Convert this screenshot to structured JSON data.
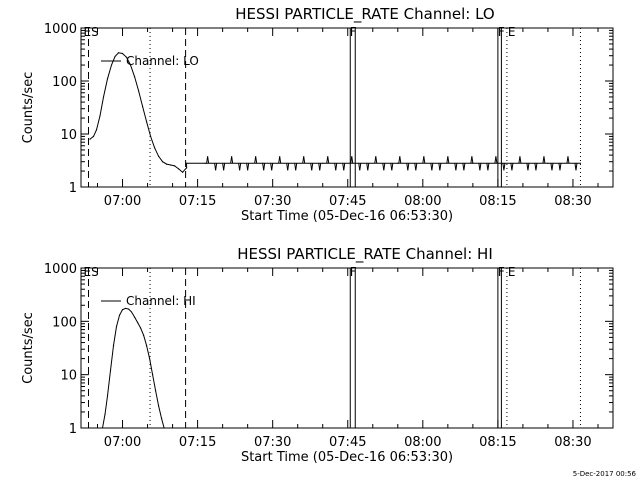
{
  "footer_timestamp": "5-Dec-2017 00:56",
  "chart_data": [
    {
      "type": "line",
      "title": "HESSI PARTICLE_RATE Channel: LO",
      "xlabel": "Start Time (05-Dec-16 06:53:30)",
      "ylabel": "Counts/sec",
      "yscale": "log",
      "ylim": [
        1,
        1000
      ],
      "xlim_minutes": [
        -8.3,
        98.0
      ],
      "x_ticks": [
        {
          "t": 0,
          "label": "07:00"
        },
        {
          "t": 15,
          "label": "07:15"
        },
        {
          "t": 30,
          "label": "07:30"
        },
        {
          "t": 45,
          "label": "07:45"
        },
        {
          "t": 60,
          "label": "08:00"
        },
        {
          "t": 75,
          "label": "08:15"
        },
        {
          "t": 90,
          "label": "08:30"
        }
      ],
      "y_ticks": [
        {
          "v": 1,
          "label": "1"
        },
        {
          "v": 10,
          "label": "10"
        },
        {
          "v": 100,
          "label": "100"
        },
        {
          "v": 1000,
          "label": "1000"
        }
      ],
      "legend": "Channel: LO",
      "series": [
        {
          "name": "Channel: LO",
          "x": [
            -6.5,
            -5.8,
            -5.2,
            -4.5,
            -3.8,
            -3.0,
            -2.2,
            -1.5,
            -0.8,
            0.0,
            0.8,
            1.6,
            2.4,
            3.2,
            4.0,
            4.8,
            5.6,
            6.4,
            7.2,
            8.0,
            8.8,
            9.6,
            10.4,
            11.2,
            12.0,
            12.8,
            12.8,
            16.5,
            28.0,
            40.0,
            55.0,
            70.0,
            85.0,
            91.5
          ],
          "y": [
            8,
            9,
            12,
            22,
            50,
            110,
            200,
            290,
            340,
            330,
            280,
            200,
            120,
            65,
            33,
            17,
            9,
            5.5,
            3.8,
            3.0,
            2.7,
            2.6,
            2.5,
            2.2,
            1.9,
            2.3,
            2.8,
            2.8,
            2.8,
            2.8,
            2.8,
            2.8,
            2.8,
            2.8
          ]
        }
      ],
      "vlines": [
        {
          "t": -6.8,
          "style": "dashed"
        },
        {
          "t": 5.5,
          "style": "dotted"
        },
        {
          "t": 12.6,
          "style": "dashed"
        },
        {
          "t": 45.5,
          "style": "solid"
        },
        {
          "t": 46.5,
          "style": "solid"
        },
        {
          "t": 75.0,
          "style": "solid"
        },
        {
          "t": 75.7,
          "style": "solid"
        },
        {
          "t": 76.8,
          "style": "dotted"
        },
        {
          "t": 91.5,
          "style": "dotted"
        }
      ],
      "flags": [
        {
          "t": -7.8,
          "label": "ES"
        },
        {
          "t": 45.4,
          "label": "F"
        },
        {
          "t": 75.0,
          "label": "F"
        },
        {
          "t": 77.0,
          "label": "E"
        }
      ]
    },
    {
      "type": "line",
      "title": "HESSI PARTICLE_RATE Channel: HI",
      "xlabel": "Start Time (05-Dec-16 06:53:30)",
      "ylabel": "Counts/sec",
      "yscale": "log",
      "ylim": [
        1,
        1000
      ],
      "xlim_minutes": [
        -8.3,
        98.0
      ],
      "x_ticks": [
        {
          "t": 0,
          "label": "07:00"
        },
        {
          "t": 15,
          "label": "07:15"
        },
        {
          "t": 30,
          "label": "07:30"
        },
        {
          "t": 45,
          "label": "07:45"
        },
        {
          "t": 60,
          "label": "08:00"
        },
        {
          "t": 75,
          "label": "08:15"
        },
        {
          "t": 90,
          "label": "08:30"
        }
      ],
      "y_ticks": [
        {
          "v": 1,
          "label": "1"
        },
        {
          "v": 10,
          "label": "10"
        },
        {
          "v": 100,
          "label": "100"
        },
        {
          "v": 1000,
          "label": "1000"
        }
      ],
      "legend": "Channel: HI",
      "series": [
        {
          "name": "Channel: HI",
          "x": [
            -4.0,
            -3.5,
            -3.0,
            -2.4,
            -1.8,
            -1.2,
            -0.6,
            0.0,
            0.6,
            1.2,
            1.8,
            2.4,
            3.0,
            3.6,
            4.2,
            4.8,
            5.4,
            6.0,
            6.6,
            7.2,
            7.8,
            8.3
          ],
          "y": [
            1.0,
            1.8,
            4,
            12,
            35,
            80,
            130,
            165,
            175,
            170,
            150,
            120,
            95,
            75,
            55,
            35,
            20,
            10,
            5,
            2.6,
            1.5,
            1.0
          ]
        }
      ],
      "vlines": [
        {
          "t": -6.8,
          "style": "dashed"
        },
        {
          "t": 5.5,
          "style": "dotted"
        },
        {
          "t": 12.6,
          "style": "dashed"
        },
        {
          "t": 45.5,
          "style": "solid"
        },
        {
          "t": 46.5,
          "style": "solid"
        },
        {
          "t": 75.0,
          "style": "solid"
        },
        {
          "t": 75.7,
          "style": "solid"
        },
        {
          "t": 76.8,
          "style": "dotted"
        },
        {
          "t": 91.5,
          "style": "dotted"
        }
      ],
      "flags": [
        {
          "t": -7.8,
          "label": "ES"
        },
        {
          "t": 45.4,
          "label": "F"
        },
        {
          "t": 75.0,
          "label": "F"
        },
        {
          "t": 77.0,
          "label": "E"
        }
      ]
    }
  ]
}
